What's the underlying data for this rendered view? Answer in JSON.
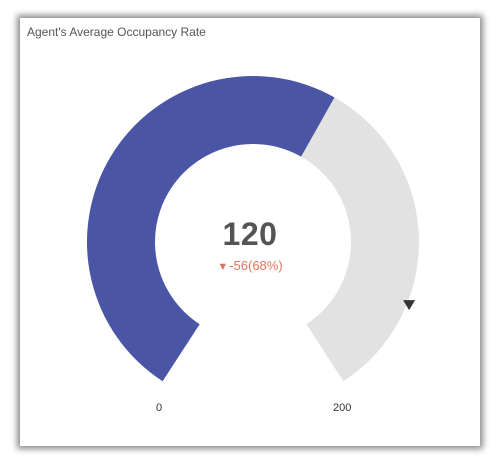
{
  "chart_data": {
    "type": "gauge",
    "title": "Agent's Average Occupancy Rate",
    "value": 120,
    "value_label": "120",
    "min": 0,
    "max": 200,
    "min_label": "0",
    "max_label": "200",
    "target": 176,
    "delta_label": "-56(68%)",
    "delta_direction": "down",
    "colors": {
      "value": "#4b55a5",
      "track": "#e2e2e2",
      "delta": "#e0735c",
      "target_marker": "#333333"
    }
  }
}
